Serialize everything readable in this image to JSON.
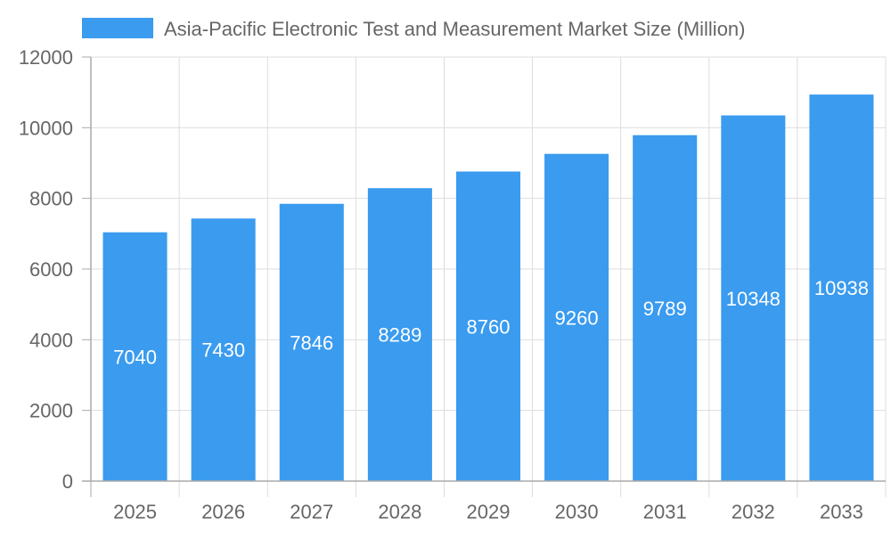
{
  "chart_data": {
    "type": "bar",
    "title": "",
    "xlabel": "",
    "ylabel": "",
    "categories": [
      "2025",
      "2026",
      "2027",
      "2028",
      "2029",
      "2030",
      "2031",
      "2032",
      "2033"
    ],
    "series": [
      {
        "name": "Asia-Pacific Electronic Test and Measurement Market Size (Million)",
        "values": [
          7040,
          7430,
          7846,
          8289,
          8760,
          9260,
          9789,
          10348,
          10938
        ],
        "color": "#3a9bef"
      }
    ],
    "ylim": [
      0,
      12000
    ],
    "yticks": [
      0,
      2000,
      4000,
      6000,
      8000,
      10000,
      12000
    ],
    "grid": true,
    "legend": "top",
    "data_labels": true
  }
}
